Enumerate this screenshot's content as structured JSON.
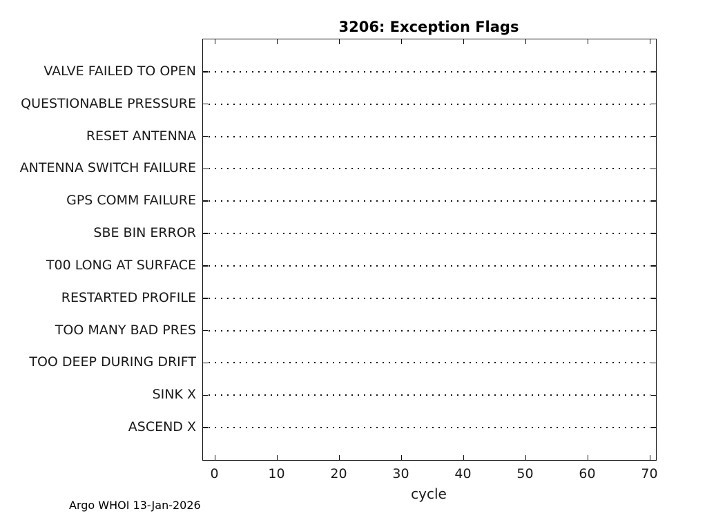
{
  "figure": {
    "background": "#ffffff",
    "line_color": "#111111",
    "text_color": "#1a1a1a",
    "footer": "Argo WHOI 13-Jan-2026"
  },
  "chart_data": {
    "type": "scatter",
    "title": "3206: Exception Flags",
    "xlabel": "cycle",
    "ylabel": "",
    "categories": [
      "VALVE FAILED TO OPEN",
      "QUESTIONABLE PRESSURE",
      "RESET ANTENNA",
      "ANTENNA SWITCH FAILURE",
      "GPS COMM FAILURE",
      "SBE BIN ERROR",
      "T00 LONG AT SURFACE",
      "RESTARTED PROFILE",
      "TOO MANY BAD PRES",
      "TOO DEEP DURING DRIFT",
      "SINK X",
      "ASCEND X"
    ],
    "x_ticks": [
      0,
      10,
      20,
      30,
      40,
      50,
      60,
      70
    ],
    "xlim": [
      -2,
      71
    ],
    "series": [],
    "points": [],
    "grid": "dotted horizontal line at every category row, no data points plotted",
    "legend": "none",
    "annotation": "Argo WHOI 13-Jan-2026"
  }
}
